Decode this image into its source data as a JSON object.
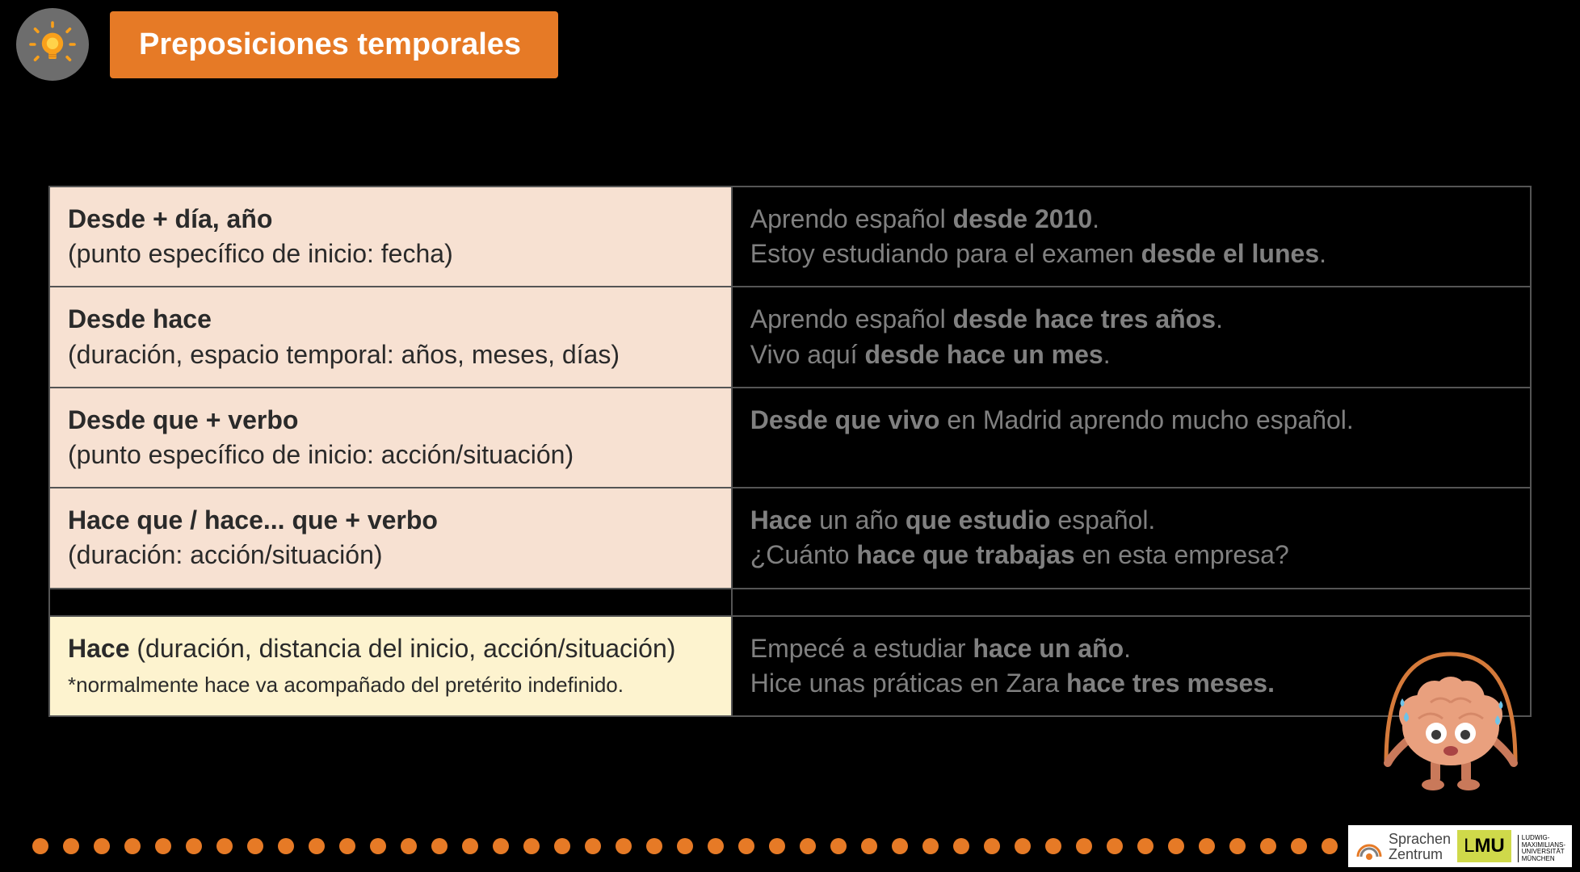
{
  "header": {
    "title": "Preposiciones temporales",
    "title_bg": "#e67a26",
    "title_color": "#ffffff",
    "bulb_bg": "#6d6d6d",
    "bulb_fill": "#f9a01b",
    "bulb_center": "#ffd24a"
  },
  "table": {
    "border_color": "#555555",
    "left_bg_peach": "#f7e1d2",
    "left_bg_yellow": "#fdf3cf",
    "right_bg": "#000000",
    "left_text_color": "#2a2a2a",
    "right_text_color": "#808080",
    "rows": [
      {
        "left_bold": "Desde + día, año",
        "left_sub": "(punto específico de inicio: fecha)",
        "right_html": "Aprendo español <b>desde 2010</b>.<br>Estoy estudiando para el examen <b>desde el lunes</b>."
      },
      {
        "left_bold": "Desde hace",
        "left_sub": "(duración, espacio temporal: años, meses, días)",
        "right_html": "Aprendo español <b>desde hace tres años</b>.<br>Vivo aquí <b>desde hace un mes</b>."
      },
      {
        "left_bold": "Desde que + verbo",
        "left_sub": "(punto específico de inicio: acción/situación)",
        "right_html": "<b>Desde que vivo</b> en Madrid aprendo mucho español."
      },
      {
        "left_bold": "Hace que / hace... que + verbo",
        "left_sub": "(duración: acción/situación)",
        "right_html": "<b>Hace</b> un año <b>que estudio</b> español.<br>¿Cuánto <b>hace que trabajas</b> en esta empresa?"
      }
    ],
    "hace_row": {
      "left_html": "<b>Hace</b> (duración, distancia del inicio, acción/situación)<br><span class='note'>*normalmente hace va acompañado del pretérito indefinido.</span>",
      "right_html": "Empecé a estudiar <b>hace un año</b>.<br>Hice unas práticas en Zara <b>hace tres meses.</b>"
    }
  },
  "dots": {
    "count": 44,
    "color": "#e67a26"
  },
  "logos": {
    "sprachen_line1": "Sprachen",
    "sprachen_line2": "Zentrum",
    "sprachen_arc_color": "#e67a26",
    "lmu_text": "LMU",
    "lmu_bg": "#cfd94a",
    "uni_line1": "LUDWIG-",
    "uni_line2": "MAXIMILIANS-",
    "uni_line3": "UNIVERSITÄT",
    "uni_line4": "MÜNCHEN"
  },
  "mascot": {
    "body_color": "#e9a07e",
    "body_dark": "#c9795a",
    "rope_color": "#d57a3a",
    "eye_white": "#ffffff",
    "eye_dark": "#3a3a3a",
    "mouth": "#a44",
    "sweat": "#6ec3e8"
  }
}
